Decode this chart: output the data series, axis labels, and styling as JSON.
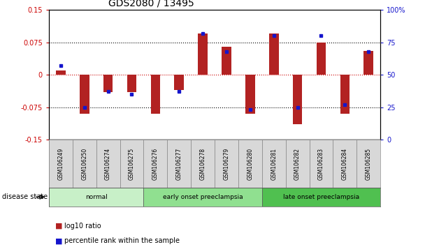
{
  "title": "GDS2080 / 13495",
  "samples": [
    "GSM106249",
    "GSM106250",
    "GSM106274",
    "GSM106275",
    "GSM106276",
    "GSM106277",
    "GSM106278",
    "GSM106279",
    "GSM106280",
    "GSM106281",
    "GSM106282",
    "GSM106283",
    "GSM106284",
    "GSM106285"
  ],
  "log10_ratio": [
    0.01,
    -0.09,
    -0.04,
    -0.04,
    -0.09,
    -0.035,
    0.095,
    0.065,
    -0.09,
    0.095,
    -0.115,
    0.075,
    -0.09,
    0.055
  ],
  "percentile_rank": [
    57,
    25,
    37,
    35,
    null,
    37,
    82,
    68,
    23,
    80,
    25,
    80,
    27,
    68
  ],
  "disease_groups": [
    {
      "label": "normal",
      "start": 0,
      "end": 3,
      "color": "#c8f0c8"
    },
    {
      "label": "early onset preeclampsia",
      "start": 4,
      "end": 8,
      "color": "#90e090"
    },
    {
      "label": "late onset preeclampsia",
      "start": 9,
      "end": 13,
      "color": "#50c050"
    }
  ],
  "ylim_left": [
    -0.15,
    0.15
  ],
  "ylim_right": [
    0,
    100
  ],
  "yticks_left": [
    -0.15,
    -0.075,
    0,
    0.075,
    0.15
  ],
  "ytick_labels_left": [
    "-0.15",
    "-0.075",
    "0",
    "0.075",
    "0.15"
  ],
  "yticks_right": [
    0,
    25,
    50,
    75,
    100
  ],
  "ytick_labels_right": [
    "0",
    "25",
    "50",
    "75",
    "100%"
  ],
  "bar_color_red": "#b22222",
  "bar_color_blue": "#1515cc",
  "zero_line_color": "#cc0000",
  "background_color": "#ffffff",
  "bar_width": 0.4,
  "title_fontsize": 10,
  "tick_fontsize": 7,
  "label_fontsize": 7
}
